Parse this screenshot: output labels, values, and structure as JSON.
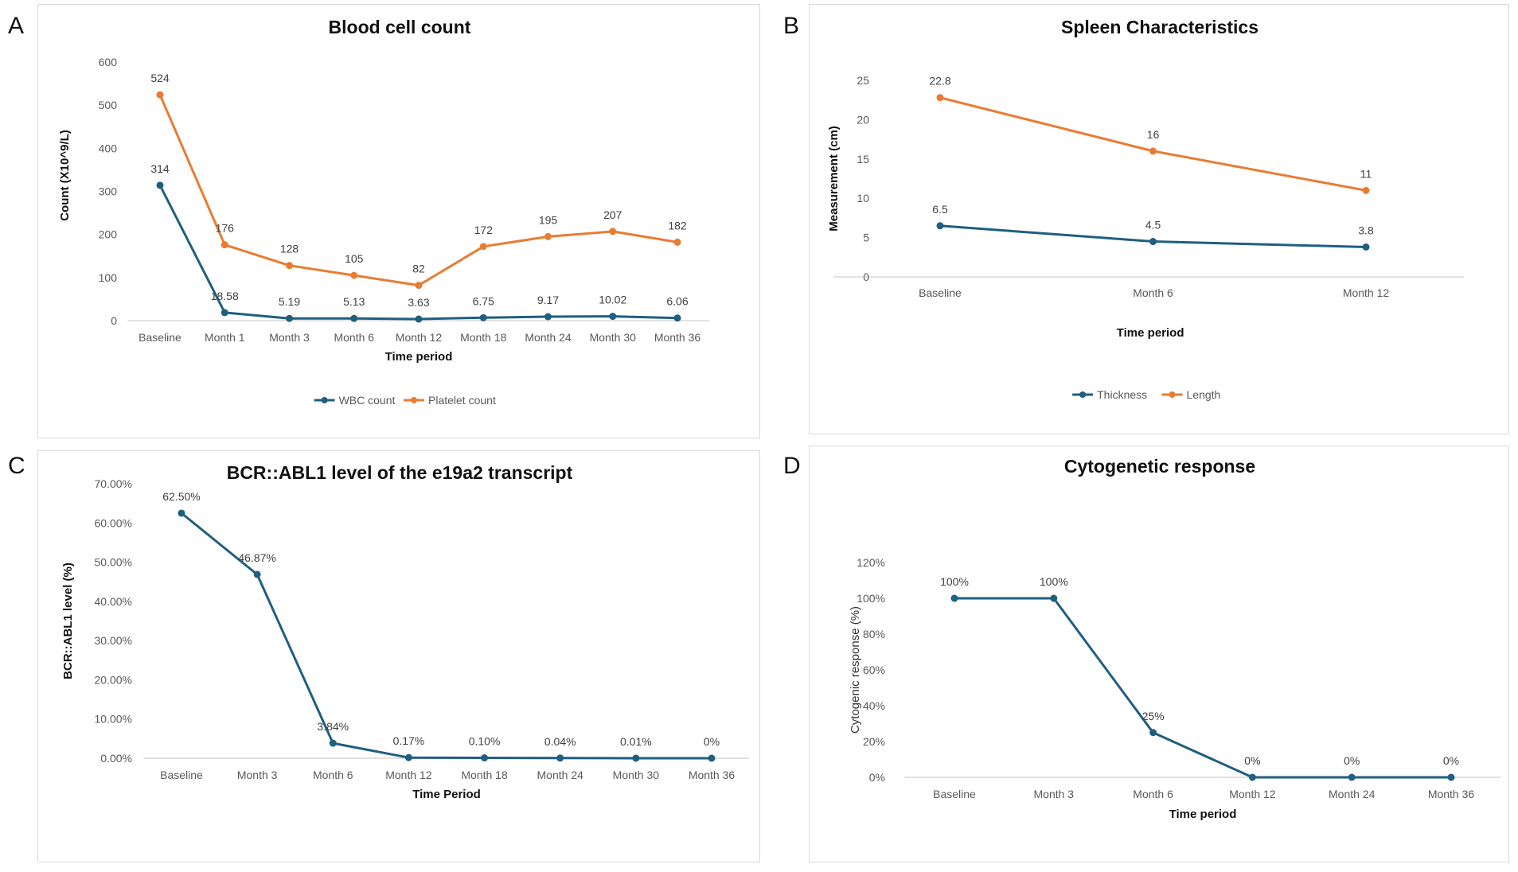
{
  "panel_letters": [
    "A",
    "B",
    "C",
    "D"
  ],
  "chart_data": [
    {
      "type": "line",
      "title": "Blood cell count",
      "xlabel": "Time period",
      "ylabel": "Count (X10^9/L)",
      "categories": [
        "Baseline",
        "Month 1",
        "Month 3",
        "Month 6",
        "Month 12",
        "Month 18",
        "Month 24",
        "Month 30",
        "Month 36"
      ],
      "yticks": [
        "0",
        "100",
        "200",
        "300",
        "400",
        "500",
        "600"
      ],
      "ylim": [
        0,
        600
      ],
      "series": [
        {
          "name": "WBC count",
          "color": "#1f5f7f",
          "values": [
            314,
            18.58,
            5.19,
            5.13,
            3.63,
            6.75,
            9.17,
            10.02,
            6.06
          ],
          "labels": [
            "314",
            "18.58",
            "5.19",
            "5.13",
            "3.63",
            "6.75",
            "9.17",
            "10.02",
            "6.06"
          ]
        },
        {
          "name": "Platelet count",
          "color": "#e97c32",
          "values": [
            524,
            176,
            128,
            105,
            82,
            172,
            195,
            207,
            182
          ],
          "labels": [
            "524",
            "176",
            "128",
            "105",
            "82",
            "172",
            "195",
            "207",
            "182"
          ]
        }
      ],
      "legend": "bottom"
    },
    {
      "type": "line",
      "title": "Spleen Characteristics",
      "xlabel": "Time period",
      "ylabel": "Measurement (cm)",
      "categories": [
        "Baseline",
        "Month 6",
        "Month 12"
      ],
      "yticks": [
        "0",
        "5",
        "10",
        "15",
        "20",
        "25"
      ],
      "ylim": [
        0,
        25
      ],
      "series": [
        {
          "name": "Thickness",
          "color": "#1f5f7f",
          "values": [
            6.5,
            4.5,
            3.8
          ],
          "labels": [
            "6.5",
            "4.5",
            "3.8"
          ]
        },
        {
          "name": "Length",
          "color": "#e97c32",
          "values": [
            22.8,
            16,
            11
          ],
          "labels": [
            "22.8",
            "16",
            "11"
          ]
        }
      ],
      "legend": "bottom"
    },
    {
      "type": "line",
      "title": "BCR::ABL1 level of the e19a2 transcript",
      "xlabel": "Time Period",
      "ylabel": "BCR::ABL1 level (%)",
      "categories": [
        "Baseline",
        "Month 3",
        "Month 6",
        "Month 12",
        "Month 18",
        "Month 24",
        "Month 30",
        "Month 36"
      ],
      "yticks": [
        "0.00%",
        "10.00%",
        "20.00%",
        "30.00%",
        "40.00%",
        "50.00%",
        "60.00%",
        "70.00%"
      ],
      "ylim": [
        0,
        70
      ],
      "series": [
        {
          "name": "BCR::ABL1 level",
          "color": "#1f5f7f",
          "values": [
            62.5,
            46.87,
            3.84,
            0.17,
            0.1,
            0.04,
            0.01,
            0
          ],
          "labels": [
            "62.50%",
            "46.87%",
            "3.84%",
            "0.17%",
            "0.10%",
            "0.04%",
            "0.01%",
            "0%"
          ]
        }
      ],
      "legend": "none"
    },
    {
      "type": "line",
      "title": "Cytogenetic response",
      "xlabel": "Time period",
      "ylabel": "Cytogenic response (%)",
      "categories": [
        "Baseline",
        "Month 3",
        "Month 6",
        "Month 12",
        "Month 24",
        "Month 36"
      ],
      "yticks": [
        "0%",
        "20%",
        "40%",
        "60%",
        "80%",
        "100%",
        "120%"
      ],
      "ylim": [
        0,
        120
      ],
      "series": [
        {
          "name": "Cytogenetic response",
          "color": "#1f5f7f",
          "values": [
            100,
            100,
            25,
            0,
            0,
            0
          ],
          "labels": [
            "100%",
            "100%",
            "25%",
            "0%",
            "0%",
            "0%"
          ]
        }
      ],
      "legend": "none"
    }
  ]
}
